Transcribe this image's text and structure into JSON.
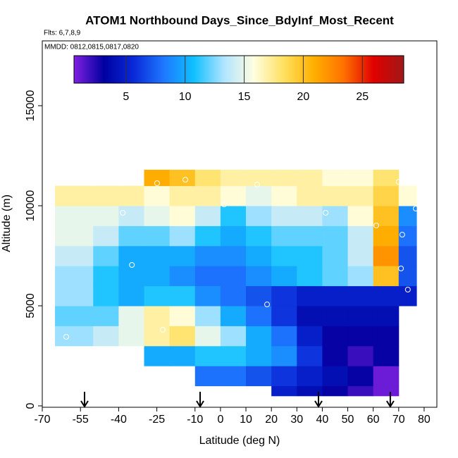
{
  "chart_data": {
    "type": "heatmap",
    "title": "ATOM1 Northbound Days_Since_BdyInf_Most_Recent",
    "subtitle": "Flts: 6,7,8,9",
    "annotation": "MMDD: 0812,0815,0817,0820",
    "xlabel": "Latitude (deg N)",
    "ylabel": "Altitude (m)",
    "xlim": [
      -70,
      85
    ],
    "ylim": [
      0,
      18240
    ],
    "xticks": [
      -70,
      -55,
      -40,
      -25,
      -10,
      0,
      10,
      20,
      30,
      40,
      50,
      60,
      70,
      80
    ],
    "yticks": [
      0,
      5000,
      10000,
      15000
    ],
    "lat_edges": [
      -65,
      -50,
      -40,
      -30,
      -20,
      -10,
      0,
      10,
      20,
      30,
      40,
      50,
      60,
      70,
      77
    ],
    "alt_edges": [
      500,
      1000,
      2000,
      3000,
      4000,
      5000,
      6000,
      7000,
      8000,
      9000,
      10000,
      11000,
      11800
    ],
    "z": [
      [
        null,
        null,
        null,
        null,
        null,
        null,
        null,
        null,
        5,
        4,
        3,
        2,
        1,
        null
      ],
      [
        null,
        null,
        null,
        null,
        null,
        8,
        8,
        7,
        6,
        5,
        4,
        3,
        1,
        null
      ],
      [
        null,
        null,
        null,
        10,
        10,
        11,
        11,
        10,
        9,
        6,
        3,
        2,
        3,
        null
      ],
      [
        13,
        14,
        15,
        17,
        18,
        15,
        13,
        10,
        8,
        5,
        3,
        3,
        3,
        null
      ],
      [
        12,
        12,
        15,
        17,
        16,
        13,
        10,
        8,
        6,
        4,
        4,
        4,
        4,
        null
      ],
      [
        13,
        11,
        10,
        11,
        11,
        9,
        8,
        7,
        6,
        5,
        5,
        5,
        5,
        5
      ],
      [
        13,
        11,
        10,
        10,
        9,
        8,
        8,
        9,
        10,
        11,
        12,
        13,
        20,
        7
      ],
      [
        14,
        12,
        10,
        10,
        10,
        9,
        9,
        10,
        11,
        11,
        12,
        14,
        22,
        7
      ],
      [
        15,
        14,
        12,
        12,
        13,
        11,
        10,
        11,
        12,
        12,
        12,
        14,
        21,
        8
      ],
      [
        15,
        15,
        14,
        15,
        16,
        14,
        11,
        13,
        14,
        14,
        13,
        16,
        20,
        9
      ],
      [
        17,
        17,
        17,
        16,
        17,
        17,
        16,
        15,
        16,
        17,
        17,
        17,
        19,
        16
      ],
      [
        null,
        null,
        null,
        21,
        20,
        18,
        17,
        17,
        17,
        17,
        16,
        16,
        18,
        null
      ]
    ],
    "points": {
      "x": [
        -24.9,
        -13.8,
        14.4,
        70.0,
        -38.4,
        1.4,
        41.3,
        76.7,
        61.2,
        71.4,
        -34.8,
        70.9,
        73.6,
        18.3,
        -22.7,
        -60.6
      ],
      "y": [
        11127,
        11303,
        11056,
        11197,
        9648,
        10070,
        9648,
        9859,
        9014,
        8556,
        7042,
        6866,
        5810,
        5070,
        3803,
        3451
      ]
    },
    "arrows": [
      -53.4,
      -8,
      38.5,
      66.7
    ],
    "colorbar": {
      "lim": [
        0.6,
        28.5
      ],
      "ticks": [
        5,
        10,
        15,
        20,
        25
      ],
      "colors": [
        "#8020e0",
        "#0000a0",
        "#0a2ad8",
        "#1e78ff",
        "#10c0ff",
        "#b0e4ff",
        "#fffee0",
        "#ffe060",
        "#ffb000",
        "#ff7000",
        "#e00000",
        "#a01818"
      ]
    }
  }
}
